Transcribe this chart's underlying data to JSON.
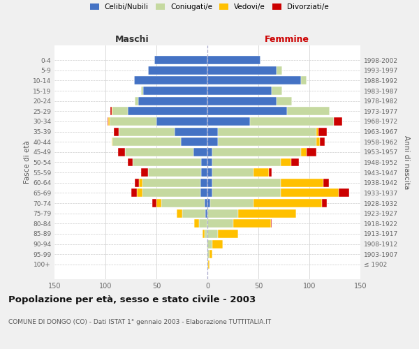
{
  "age_groups": [
    "100+",
    "95-99",
    "90-94",
    "85-89",
    "80-84",
    "75-79",
    "70-74",
    "65-69",
    "60-64",
    "55-59",
    "50-54",
    "45-49",
    "40-44",
    "35-39",
    "30-34",
    "25-29",
    "20-24",
    "15-19",
    "10-14",
    "5-9",
    "0-4"
  ],
  "birth_years": [
    "≤ 1902",
    "1903-1907",
    "1908-1912",
    "1913-1917",
    "1918-1922",
    "1923-1927",
    "1928-1932",
    "1933-1937",
    "1938-1942",
    "1943-1947",
    "1948-1952",
    "1953-1957",
    "1958-1962",
    "1963-1967",
    "1968-1972",
    "1973-1977",
    "1978-1982",
    "1983-1987",
    "1988-1992",
    "1993-1997",
    "1998-2002"
  ],
  "colors": {
    "celibi": "#4472c4",
    "coniugati": "#c5d9a0",
    "vedovi": "#ffc000",
    "divorziati": "#cc0000"
  },
  "maschi": {
    "celibi": [
      0,
      0,
      0,
      0,
      0,
      2,
      3,
      7,
      7,
      6,
      6,
      14,
      26,
      32,
      50,
      78,
      68,
      63,
      72,
      58,
      52
    ],
    "coniugati": [
      0,
      0,
      1,
      3,
      8,
      23,
      42,
      57,
      57,
      52,
      67,
      67,
      67,
      55,
      46,
      15,
      3,
      2,
      0,
      0,
      0
    ],
    "vedovi": [
      0,
      0,
      0,
      2,
      5,
      5,
      5,
      5,
      3,
      0,
      0,
      0,
      1,
      0,
      1,
      1,
      0,
      0,
      0,
      0,
      0
    ],
    "divorziati": [
      0,
      0,
      0,
      0,
      0,
      0,
      4,
      6,
      4,
      7,
      5,
      7,
      0,
      5,
      1,
      1,
      0,
      0,
      0,
      0,
      0
    ]
  },
  "femmine": {
    "celibi": [
      0,
      0,
      0,
      0,
      0,
      0,
      3,
      5,
      5,
      5,
      5,
      5,
      10,
      10,
      42,
      78,
      68,
      63,
      92,
      68,
      52
    ],
    "coniugati": [
      1,
      2,
      5,
      10,
      25,
      30,
      42,
      67,
      67,
      40,
      67,
      87,
      97,
      97,
      82,
      42,
      15,
      10,
      5,
      5,
      0
    ],
    "vedovi": [
      1,
      3,
      10,
      20,
      37,
      57,
      67,
      57,
      42,
      15,
      10,
      5,
      3,
      2,
      0,
      0,
      0,
      0,
      0,
      0,
      0
    ],
    "divorziati": [
      0,
      0,
      0,
      0,
      1,
      0,
      5,
      10,
      5,
      3,
      8,
      10,
      5,
      8,
      8,
      0,
      0,
      0,
      0,
      0,
      0
    ]
  },
  "xlim": 150,
  "title": "Popolazione per età, sesso e stato civile - 2003",
  "subtitle": "COMUNE DI DONGO (CO) - Dati ISTAT 1° gennaio 2003 - Elaborazione TUTTITALIA.IT",
  "ylabel_left": "Fasce di età",
  "ylabel_right": "Anni di nascita",
  "xlabel_maschi": "Maschi",
  "xlabel_femmine": "Femmine",
  "bg_color": "#f0f0f0",
  "plot_bg_color": "#ffffff",
  "grid_color": "#cccccc",
  "legend_labels": [
    "Celibi/Nubili",
    "Coniugati/e",
    "Vedovi/e",
    "Divorziati/e"
  ]
}
